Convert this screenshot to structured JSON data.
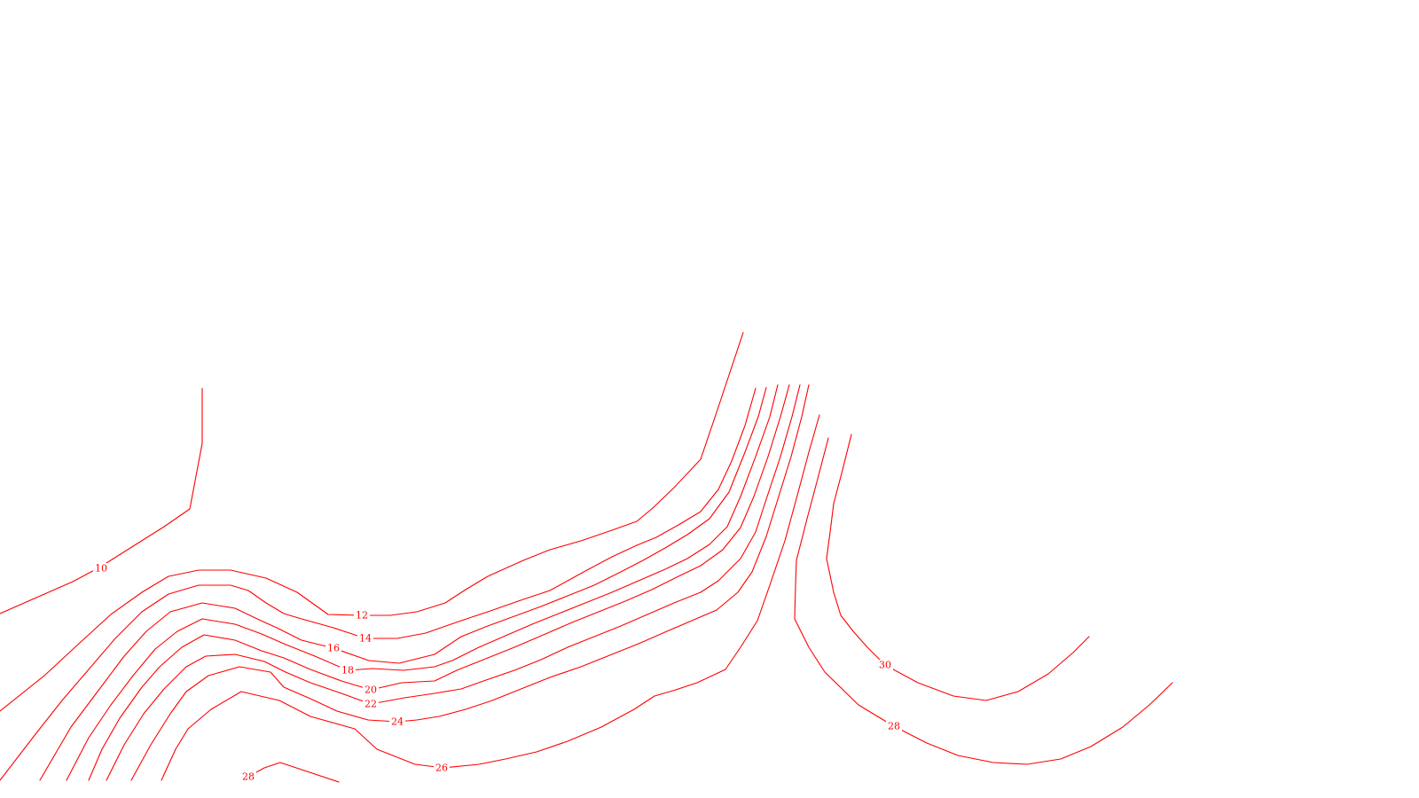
{
  "colors": {
    "background": "#ffffff",
    "contour": "#ff0000"
  },
  "contours": [
    {
      "id": "contour-10",
      "label": "10"
    },
    {
      "id": "contour-12",
      "label": "12"
    },
    {
      "id": "contour-14",
      "label": "14"
    },
    {
      "id": "contour-16",
      "label": "16"
    },
    {
      "id": "contour-18",
      "label": "18"
    },
    {
      "id": "contour-20",
      "label": "20"
    },
    {
      "id": "contour-22",
      "label": "22"
    },
    {
      "id": "contour-24",
      "label": "24"
    },
    {
      "id": "contour-26",
      "label": "26"
    },
    {
      "id": "contour-28-left",
      "label": "28"
    },
    {
      "id": "contour-30-right",
      "label": "30"
    },
    {
      "id": "contour-28-right",
      "label": "28"
    }
  ]
}
